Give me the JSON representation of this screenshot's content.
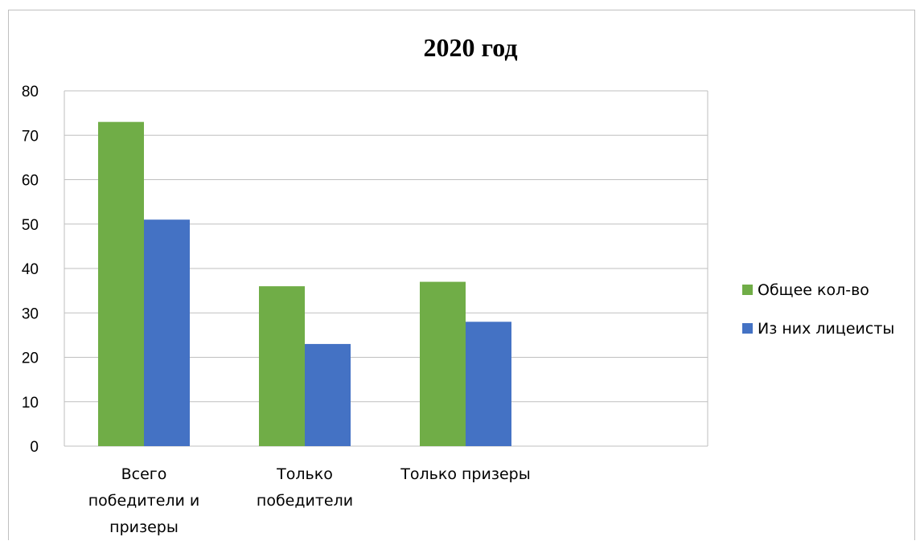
{
  "chart_data": {
    "type": "bar",
    "title": "2020 год",
    "categories": [
      [
        "Всего",
        "победители и",
        "призеры"
      ],
      [
        "Только",
        "победители"
      ],
      [
        "Только призеры"
      ]
    ],
    "series": [
      {
        "name": "Общее кол-во",
        "color": "#70ad47",
        "values": [
          73,
          36,
          37
        ]
      },
      {
        "name": "Из них лицеисты",
        "color": "#4472c4",
        "values": [
          51,
          23,
          28
        ]
      }
    ],
    "ylim": [
      0,
      80
    ],
    "yticks": [
      0,
      10,
      20,
      30,
      40,
      50,
      60,
      70,
      80
    ],
    "grid": true,
    "legend_position": "right"
  }
}
